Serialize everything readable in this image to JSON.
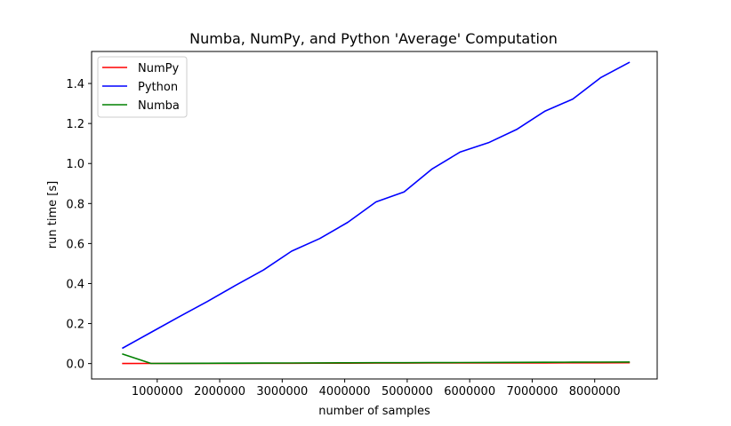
{
  "chart_data": {
    "type": "line",
    "title": "Numba, NumPy, and Python 'Average' Computation",
    "xlabel": "number of samples",
    "ylabel": "run time [s]",
    "xlim": [
      -50000,
      9000000
    ],
    "ylim": [
      -0.077,
      1.56
    ],
    "xticks": [
      1000000,
      2000000,
      3000000,
      4000000,
      5000000,
      6000000,
      7000000,
      8000000
    ],
    "yticks": [
      0.0,
      0.2,
      0.4,
      0.6,
      0.8,
      1.0,
      1.2,
      1.4
    ],
    "grid": false,
    "legend_position": "top-left",
    "x": [
      450000,
      900000,
      1350000,
      1800000,
      2250000,
      2700000,
      3150000,
      3600000,
      4050000,
      4500000,
      4950000,
      5400000,
      5850000,
      6300000,
      6750000,
      7200000,
      7650000,
      8100000,
      8550000
    ],
    "series": [
      {
        "name": "NumPy",
        "color": "#ff0000",
        "values": [
          0.0003,
          0.0005,
          0.0008,
          0.001,
          0.0012,
          0.0015,
          0.0017,
          0.0019,
          0.0021,
          0.0023,
          0.0025,
          0.0027,
          0.0029,
          0.0031,
          0.0033,
          0.0035,
          0.0037,
          0.0039,
          0.0041
        ]
      },
      {
        "name": "Python",
        "color": "#0000ff",
        "values": [
          0.078,
          0.156,
          0.234,
          0.31,
          0.39,
          0.468,
          0.562,
          0.625,
          0.706,
          0.808,
          0.858,
          0.973,
          1.058,
          1.104,
          1.17,
          1.261,
          1.322,
          1.43,
          1.505
        ]
      },
      {
        "name": "Numba",
        "color": "#008000",
        "values": [
          0.047,
          0.0008,
          0.0012,
          0.0016,
          0.002,
          0.0024,
          0.0028,
          0.0032,
          0.0036,
          0.004,
          0.0044,
          0.0048,
          0.0052,
          0.0056,
          0.006,
          0.0064,
          0.0068,
          0.0072,
          0.0076
        ]
      }
    ]
  }
}
